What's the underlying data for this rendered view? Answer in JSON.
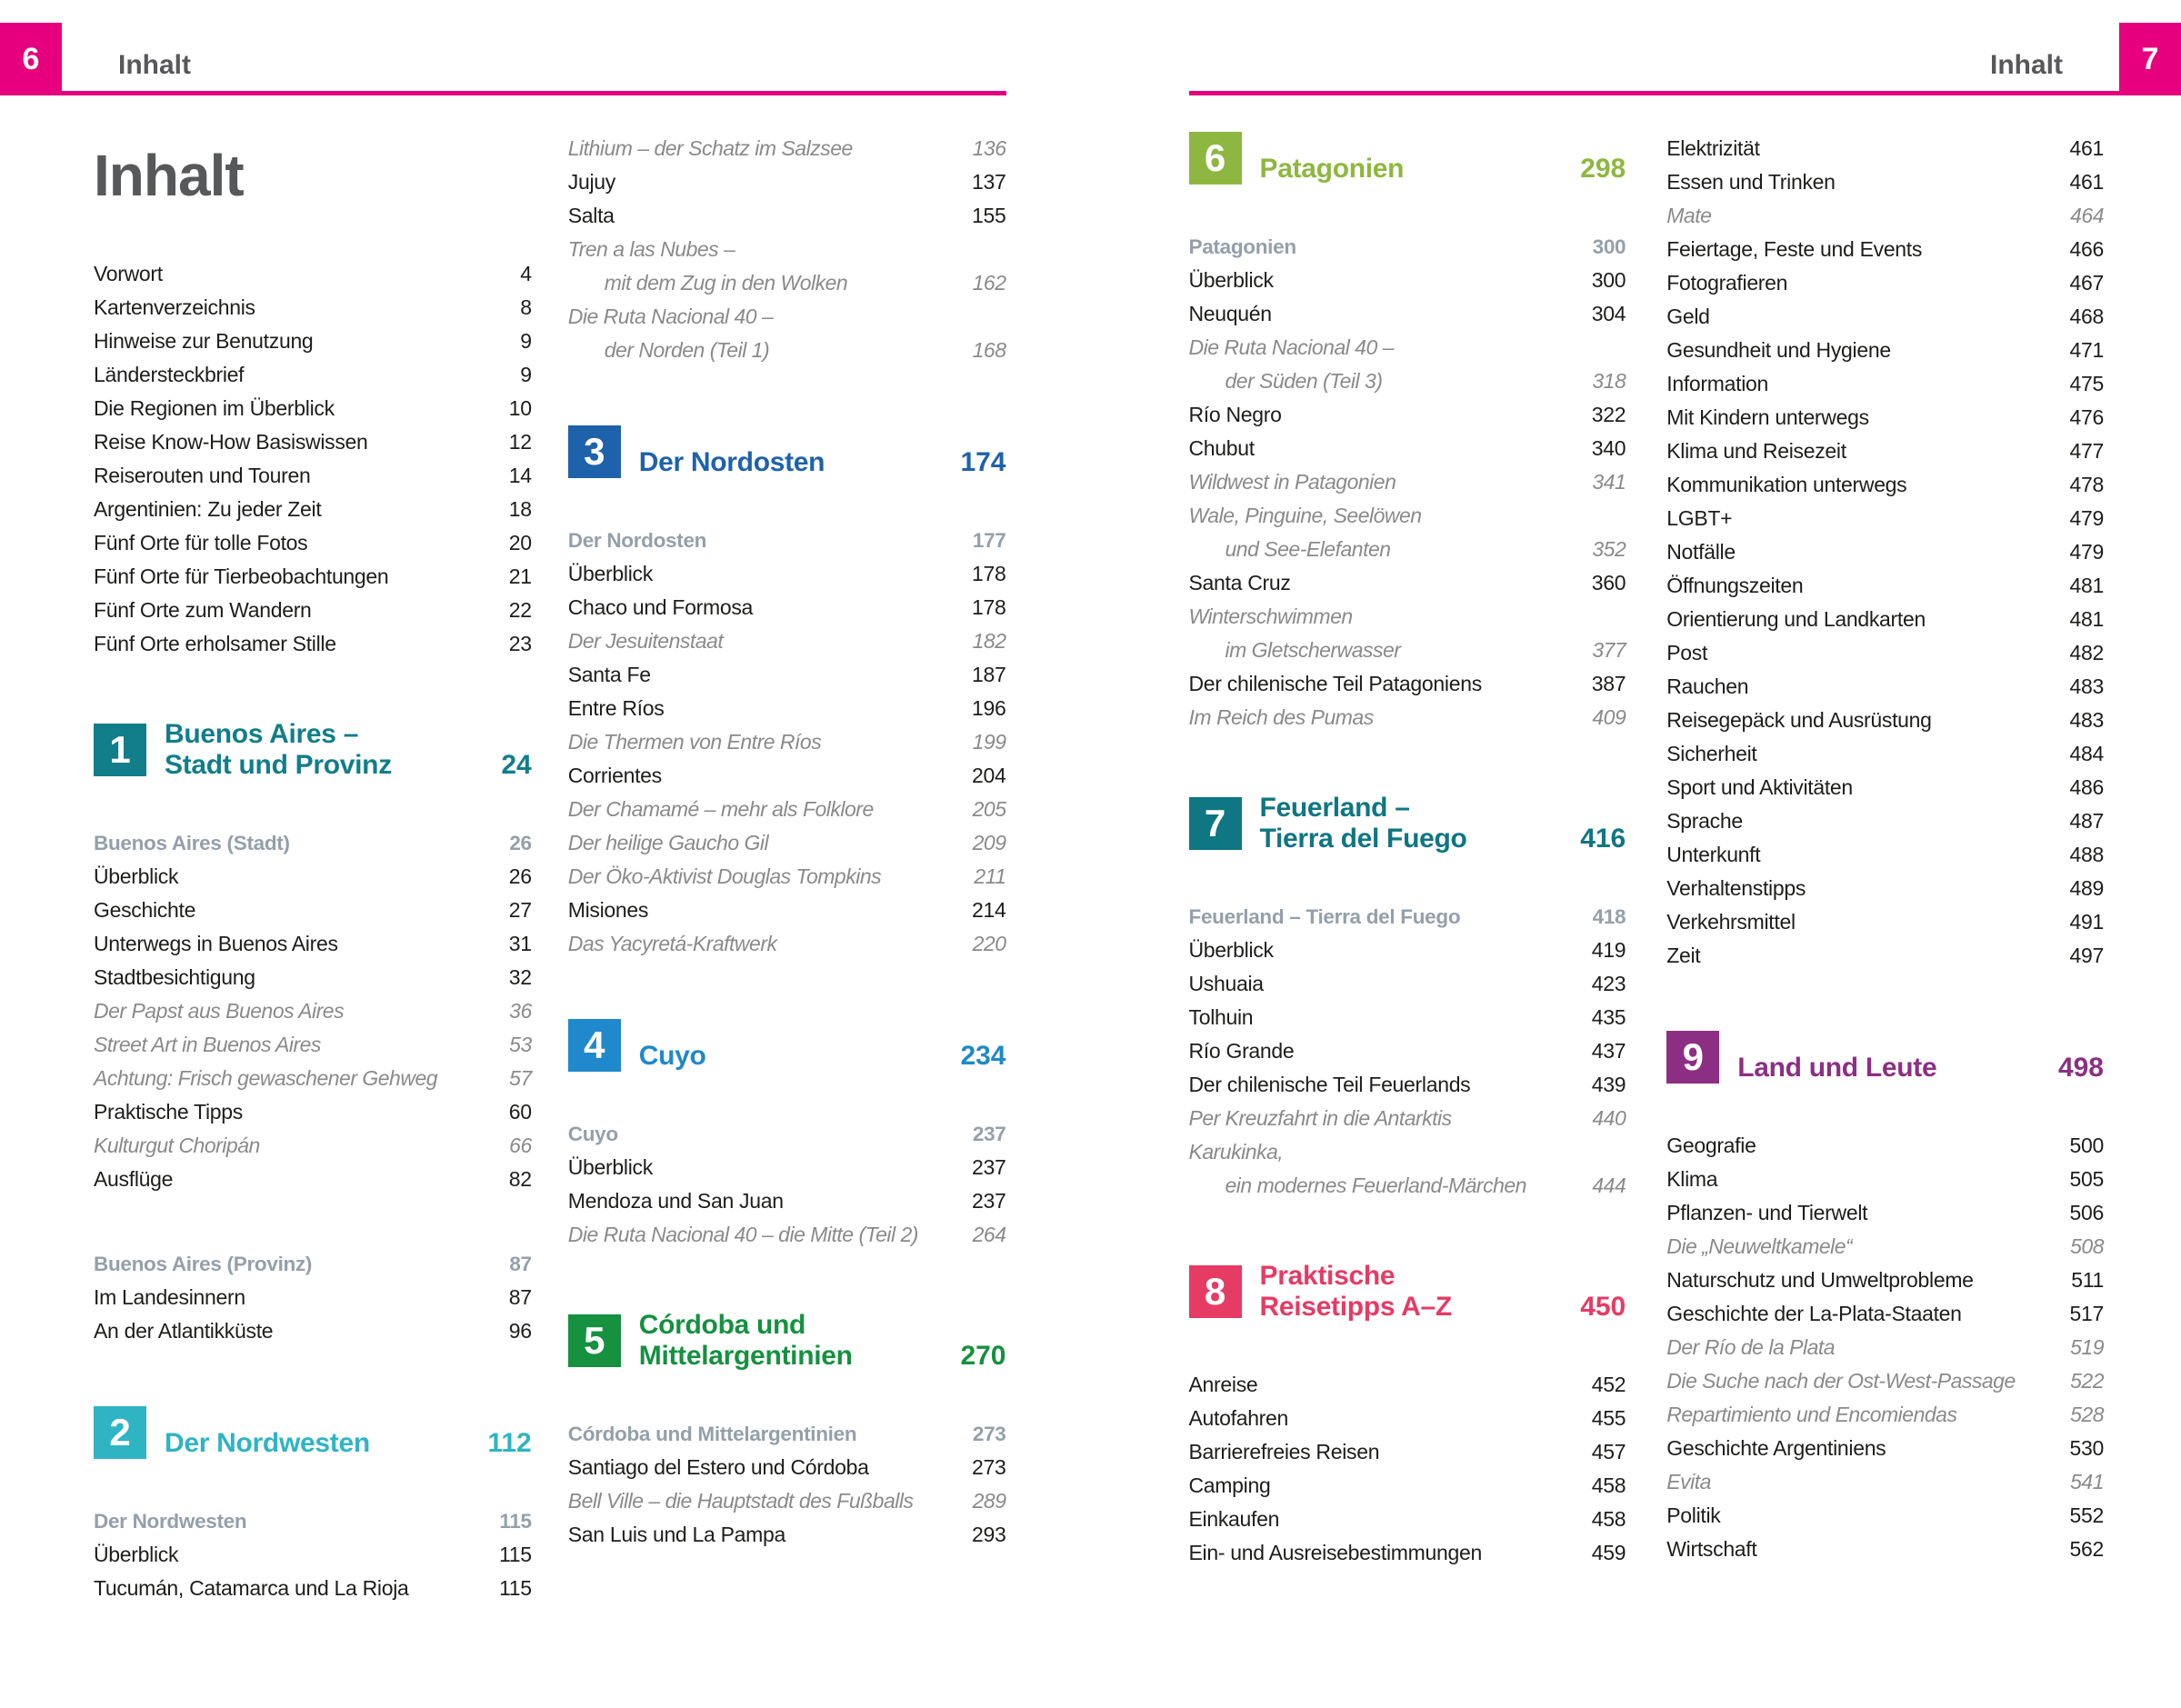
{
  "meta": {
    "colors": {
      "accent_pink": "#e6007d",
      "ink": "#1d1d1b",
      "gray_italic": "#8a8a8a",
      "gray_subhead": "#93a0ab"
    }
  },
  "page6": {
    "corner_number": "6",
    "header_label": "Inhalt",
    "title": "Inhalt",
    "col1": [
      {
        "type": "group",
        "items": [
          {
            "label": "Vorwort",
            "page": "4"
          },
          {
            "label": "Kartenverzeichnis",
            "page": "8"
          },
          {
            "label": "Hinweise zur Benutzung",
            "page": "9"
          },
          {
            "label": "Ländersteckbrief",
            "page": "9"
          },
          {
            "label": "Die Regionen im Überblick",
            "page": "10"
          },
          {
            "label": "Reise Know-How Basiswissen",
            "page": "12"
          },
          {
            "label": "Reiserouten und Touren",
            "page": "14"
          },
          {
            "label": "Argentinien: Zu jeder Zeit",
            "page": "18"
          },
          {
            "label": "Fünf Orte für tolle Fotos",
            "page": "20"
          },
          {
            "label": "Fünf Orte für Tierbeobachtungen",
            "page": "21"
          },
          {
            "label": "Fünf Orte zum Wandern",
            "page": "22"
          },
          {
            "label": "Fünf Orte erholsamer Stille",
            "page": "23"
          }
        ]
      },
      {
        "type": "section",
        "number": "1",
        "lines": [
          "Buenos Aires –",
          "Stadt und Provinz"
        ],
        "page": "24",
        "color": "#117e8a"
      },
      {
        "type": "group",
        "items": [
          {
            "label": "Buenos Aires (Stadt)",
            "page": "26",
            "style": "subhead"
          },
          {
            "label": "Überblick",
            "page": "26"
          },
          {
            "label": "Geschichte",
            "page": "27"
          },
          {
            "label": "Unterwegs in Buenos Aires",
            "page": "31"
          },
          {
            "label": "Stadtbesichtigung",
            "page": "32"
          },
          {
            "label": "Der Papst aus Buenos Aires",
            "page": "36",
            "style": "italic"
          },
          {
            "label": "Street Art in Buenos Aires",
            "page": "53",
            "style": "italic"
          },
          {
            "label": "Achtung: Frisch gewaschener Gehweg",
            "page": "57",
            "style": "italic"
          },
          {
            "label": "Praktische Tipps",
            "page": "60"
          },
          {
            "label": "Kulturgut Choripán",
            "page": "66",
            "style": "italic"
          },
          {
            "label": "Ausflüge",
            "page": "82"
          }
        ]
      },
      {
        "type": "group",
        "items": [
          {
            "label": "Buenos Aires (Provinz)",
            "page": "87",
            "style": "subhead"
          },
          {
            "label": "Im Landesinnern",
            "page": "87"
          },
          {
            "label": "An der Atlantikküste",
            "page": "96"
          }
        ]
      },
      {
        "type": "section",
        "number": "2",
        "lines": [
          "Der Nordwesten"
        ],
        "page": "112",
        "color": "#2fb4c4"
      },
      {
        "type": "group",
        "items": [
          {
            "label": "Der Nordwesten",
            "page": "115",
            "style": "subhead"
          },
          {
            "label": "Überblick",
            "page": "115"
          },
          {
            "label": "Tucumán, Catamarca und La Rioja",
            "page": "115"
          }
        ]
      }
    ],
    "col2": [
      {
        "type": "group",
        "items": [
          {
            "label": "Lithium – der Schatz im Salzsee",
            "page": "136",
            "style": "italic"
          },
          {
            "label": "Jujuy",
            "page": "137"
          },
          {
            "label": "Salta",
            "page": "155"
          },
          {
            "label": "Tren a las Nubes –",
            "page": "",
            "style": "italic"
          },
          {
            "label": "mit dem Zug in den Wolken",
            "page": "162",
            "style": "italic",
            "indent": true
          },
          {
            "label": "Die Ruta Nacional 40 –",
            "page": "",
            "style": "italic"
          },
          {
            "label": "der Norden (Teil 1)",
            "page": "168",
            "style": "italic",
            "indent": true
          }
        ]
      },
      {
        "type": "section",
        "number": "3",
        "lines": [
          "Der Nordosten"
        ],
        "page": "174",
        "color": "#1e62ab"
      },
      {
        "type": "group",
        "items": [
          {
            "label": "Der Nordosten",
            "page": "177",
            "style": "subhead"
          },
          {
            "label": "Überblick",
            "page": "178"
          },
          {
            "label": "Chaco und Formosa",
            "page": "178"
          },
          {
            "label": "Der Jesuitenstaat",
            "page": "182",
            "style": "italic"
          },
          {
            "label": "Santa Fe",
            "page": "187"
          },
          {
            "label": "Entre Ríos",
            "page": "196"
          },
          {
            "label": "Die Thermen von Entre Ríos",
            "page": "199",
            "style": "italic"
          },
          {
            "label": "Corrientes",
            "page": "204"
          },
          {
            "label": "Der Chamamé – mehr als Folklore",
            "page": "205",
            "style": "italic"
          },
          {
            "label": "Der heilige Gaucho Gil",
            "page": "209",
            "style": "italic"
          },
          {
            "label": "Der Öko-Aktivist Douglas Tompkins",
            "page": "211",
            "style": "italic"
          },
          {
            "label": "Misiones",
            "page": "214"
          },
          {
            "label": "Das Yacyretá-Kraftwerk",
            "page": "220",
            "style": "italic"
          }
        ]
      },
      {
        "type": "section",
        "number": "4",
        "lines": [
          "Cuyo"
        ],
        "page": "234",
        "color": "#2089cb"
      },
      {
        "type": "group",
        "items": [
          {
            "label": "Cuyo",
            "page": "237",
            "style": "subhead"
          },
          {
            "label": "Überblick",
            "page": "237"
          },
          {
            "label": "Mendoza und San Juan",
            "page": "237"
          },
          {
            "label": "Die Ruta Nacional 40 – die Mitte (Teil 2)",
            "page": "264",
            "style": "italic"
          }
        ]
      },
      {
        "type": "section",
        "number": "5",
        "lines": [
          "Córdoba und",
          "Mittelargentinien"
        ],
        "page": "270",
        "color": "#15913f"
      },
      {
        "type": "group",
        "items": [
          {
            "label": "Córdoba und Mittelargentinien",
            "page": "273",
            "style": "subhead"
          },
          {
            "label": "Santiago del Estero und Córdoba",
            "page": "273"
          },
          {
            "label": "Bell Ville – die Hauptstadt des Fußballs",
            "page": "289",
            "style": "italic"
          },
          {
            "label": "San Luis und La Pampa",
            "page": "293"
          }
        ]
      }
    ]
  },
  "page7": {
    "corner_number": "7",
    "header_label": "Inhalt",
    "col1": [
      {
        "type": "section",
        "number": "6",
        "lines": [
          "Patagonien"
        ],
        "page": "298",
        "color": "#8eb741"
      },
      {
        "type": "group",
        "items": [
          {
            "label": "Patagonien",
            "page": "300",
            "style": "subhead"
          },
          {
            "label": "Überblick",
            "page": "300"
          },
          {
            "label": "Neuquén",
            "page": "304"
          },
          {
            "label": "Die Ruta Nacional 40 –",
            "page": "",
            "style": "italic"
          },
          {
            "label": "der Süden (Teil 3)",
            "page": "318",
            "style": "italic",
            "indent": true
          },
          {
            "label": "Río Negro",
            "page": "322"
          },
          {
            "label": "Chubut",
            "page": "340"
          },
          {
            "label": "Wildwest in Patagonien",
            "page": "341",
            "style": "italic"
          },
          {
            "label": "Wale, Pinguine, Seelöwen",
            "page": "",
            "style": "italic"
          },
          {
            "label": "und See-Elefanten",
            "page": "352",
            "style": "italic",
            "indent": true
          },
          {
            "label": "Santa Cruz",
            "page": "360"
          },
          {
            "label": "Winterschwimmen",
            "page": "",
            "style": "italic"
          },
          {
            "label": "im Gletscherwasser",
            "page": "377",
            "style": "italic",
            "indent": true
          },
          {
            "label": "Der chilenische Teil Patagoniens",
            "page": "387"
          },
          {
            "label": "Im Reich des Pumas",
            "page": "409",
            "style": "italic"
          }
        ]
      },
      {
        "type": "section",
        "number": "7",
        "lines": [
          "Feuerland –",
          "Tierra del Fuego"
        ],
        "page": "416",
        "color": "#0f7683"
      },
      {
        "type": "group",
        "items": [
          {
            "label": "Feuerland – Tierra del Fuego",
            "page": "418",
            "style": "subhead"
          },
          {
            "label": "Überblick",
            "page": "419"
          },
          {
            "label": "Ushuaia",
            "page": "423"
          },
          {
            "label": "Tolhuin",
            "page": "435"
          },
          {
            "label": "Río Grande",
            "page": "437"
          },
          {
            "label": "Der chilenische Teil Feuerlands",
            "page": "439"
          },
          {
            "label": "Per Kreuzfahrt in die Antarktis",
            "page": "440",
            "style": "italic"
          },
          {
            "label": "Karukinka,",
            "page": "",
            "style": "italic"
          },
          {
            "label": "ein modernes Feuerland-Märchen",
            "page": "444",
            "style": "italic",
            "indent": true
          }
        ]
      },
      {
        "type": "section",
        "number": "8",
        "lines": [
          "Praktische",
          "Reisetipps A–Z"
        ],
        "page": "450",
        "color": "#e63b64"
      },
      {
        "type": "group",
        "items": [
          {
            "label": "Anreise",
            "page": "452"
          },
          {
            "label": "Autofahren",
            "page": "455"
          },
          {
            "label": "Barrierefreies Reisen",
            "page": "457"
          },
          {
            "label": "Camping",
            "page": "458"
          },
          {
            "label": "Einkaufen",
            "page": "458"
          },
          {
            "label": "Ein- und Ausreisebestimmungen",
            "page": "459"
          }
        ]
      }
    ],
    "col2": [
      {
        "type": "group",
        "items": [
          {
            "label": "Elektrizität",
            "page": "461"
          },
          {
            "label": "Essen und Trinken",
            "page": "461"
          },
          {
            "label": "Mate",
            "page": "464",
            "style": "italic"
          },
          {
            "label": "Feiertage, Feste und Events",
            "page": "466"
          },
          {
            "label": "Fotografieren",
            "page": "467"
          },
          {
            "label": "Geld",
            "page": "468"
          },
          {
            "label": "Gesundheit und Hygiene",
            "page": "471"
          },
          {
            "label": "Information",
            "page": "475"
          },
          {
            "label": "Mit Kindern unterwegs",
            "page": "476"
          },
          {
            "label": "Klima und Reisezeit",
            "page": "477"
          },
          {
            "label": "Kommunikation unterwegs",
            "page": "478"
          },
          {
            "label": "LGBT+",
            "page": "479"
          },
          {
            "label": "Notfälle",
            "page": "479"
          },
          {
            "label": "Öffnungszeiten",
            "page": "481"
          },
          {
            "label": "Orientierung und Landkarten",
            "page": "481"
          },
          {
            "label": "Post",
            "page": "482"
          },
          {
            "label": "Rauchen",
            "page": "483"
          },
          {
            "label": "Reisegepäck und Ausrüstung",
            "page": "483"
          },
          {
            "label": "Sicherheit",
            "page": "484"
          },
          {
            "label": "Sport und Aktivitäten",
            "page": "486"
          },
          {
            "label": "Sprache",
            "page": "487"
          },
          {
            "label": "Unterkunft",
            "page": "488"
          },
          {
            "label": "Verhaltenstipps",
            "page": "489"
          },
          {
            "label": "Verkehrsmittel",
            "page": "491"
          },
          {
            "label": "Zeit",
            "page": "497"
          }
        ]
      },
      {
        "type": "section",
        "number": "9",
        "lines": [
          "Land und Leute"
        ],
        "page": "498",
        "color": "#8c2f84"
      },
      {
        "type": "group",
        "items": [
          {
            "label": "Geografie",
            "page": "500"
          },
          {
            "label": "Klima",
            "page": "505"
          },
          {
            "label": "Pflanzen- und Tierwelt",
            "page": "506"
          },
          {
            "label": "Die „Neuweltkamele“",
            "page": "508",
            "style": "italic"
          },
          {
            "label": "Naturschutz und Umweltprobleme",
            "page": "511"
          },
          {
            "label": "Geschichte der La-Plata-Staaten",
            "page": "517"
          },
          {
            "label": "Der Río de la Plata",
            "page": "519",
            "style": "italic"
          },
          {
            "label": "Die Suche nach der Ost-West-Passage",
            "page": "522",
            "style": "italic"
          },
          {
            "label": "Repartimiento und Encomiendas",
            "page": "528",
            "style": "italic"
          },
          {
            "label": "Geschichte Argentiniens",
            "page": "530"
          },
          {
            "label": "Evita",
            "page": "541",
            "style": "italic"
          },
          {
            "label": "Politik",
            "page": "552"
          },
          {
            "label": "Wirtschaft",
            "page": "562"
          }
        ]
      }
    ]
  }
}
